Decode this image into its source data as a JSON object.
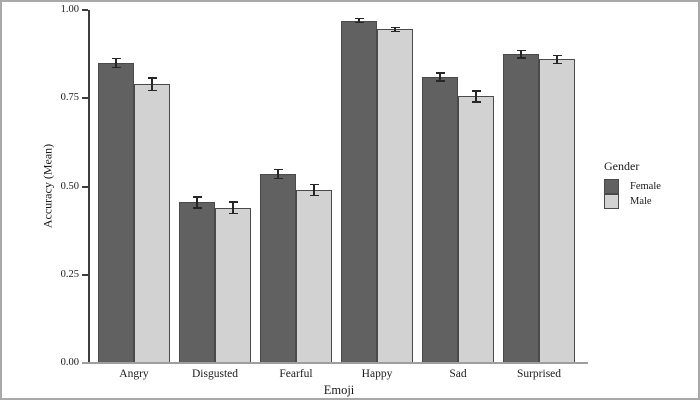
{
  "figure": {
    "background": "#ffffff",
    "border_color": "#a9a9a9",
    "axis_line_color": "#3d3d3d",
    "baseline_color": "#9e9e9e"
  },
  "chart_data": {
    "type": "bar",
    "title": "",
    "xlabel": "Emoji",
    "ylabel": "Accuracy (Mean)",
    "categories": [
      "Angry",
      "Disgusted",
      "Fearful",
      "Happy",
      "Sad",
      "Surprised"
    ],
    "series": [
      {
        "name": "Female",
        "color": "#616161",
        "values": [
          0.85,
          0.455,
          0.535,
          0.97,
          0.81,
          0.875
        ],
        "errors": [
          0.015,
          0.018,
          0.015,
          0.008,
          0.013,
          0.013
        ]
      },
      {
        "name": "Male",
        "color": "#d2d2d2",
        "values": [
          0.79,
          0.44,
          0.49,
          0.945,
          0.755,
          0.86
        ],
        "errors": [
          0.02,
          0.018,
          0.018,
          0.008,
          0.018,
          0.013
        ]
      }
    ],
    "ylim": [
      0,
      1
    ],
    "yticks": [
      {
        "value": 0.0,
        "label": "0.00"
      },
      {
        "value": 0.25,
        "label": "0.25"
      },
      {
        "value": 0.5,
        "label": "0.50"
      },
      {
        "value": 0.75,
        "label": "0.75"
      },
      {
        "value": 1.0,
        "label": "1.00"
      }
    ],
    "legend": {
      "title": "Gender",
      "position": "right"
    },
    "grid": false,
    "error_bars": true,
    "bar_outline_color": "#4a4a4a",
    "error_bar_color": "#262626"
  }
}
